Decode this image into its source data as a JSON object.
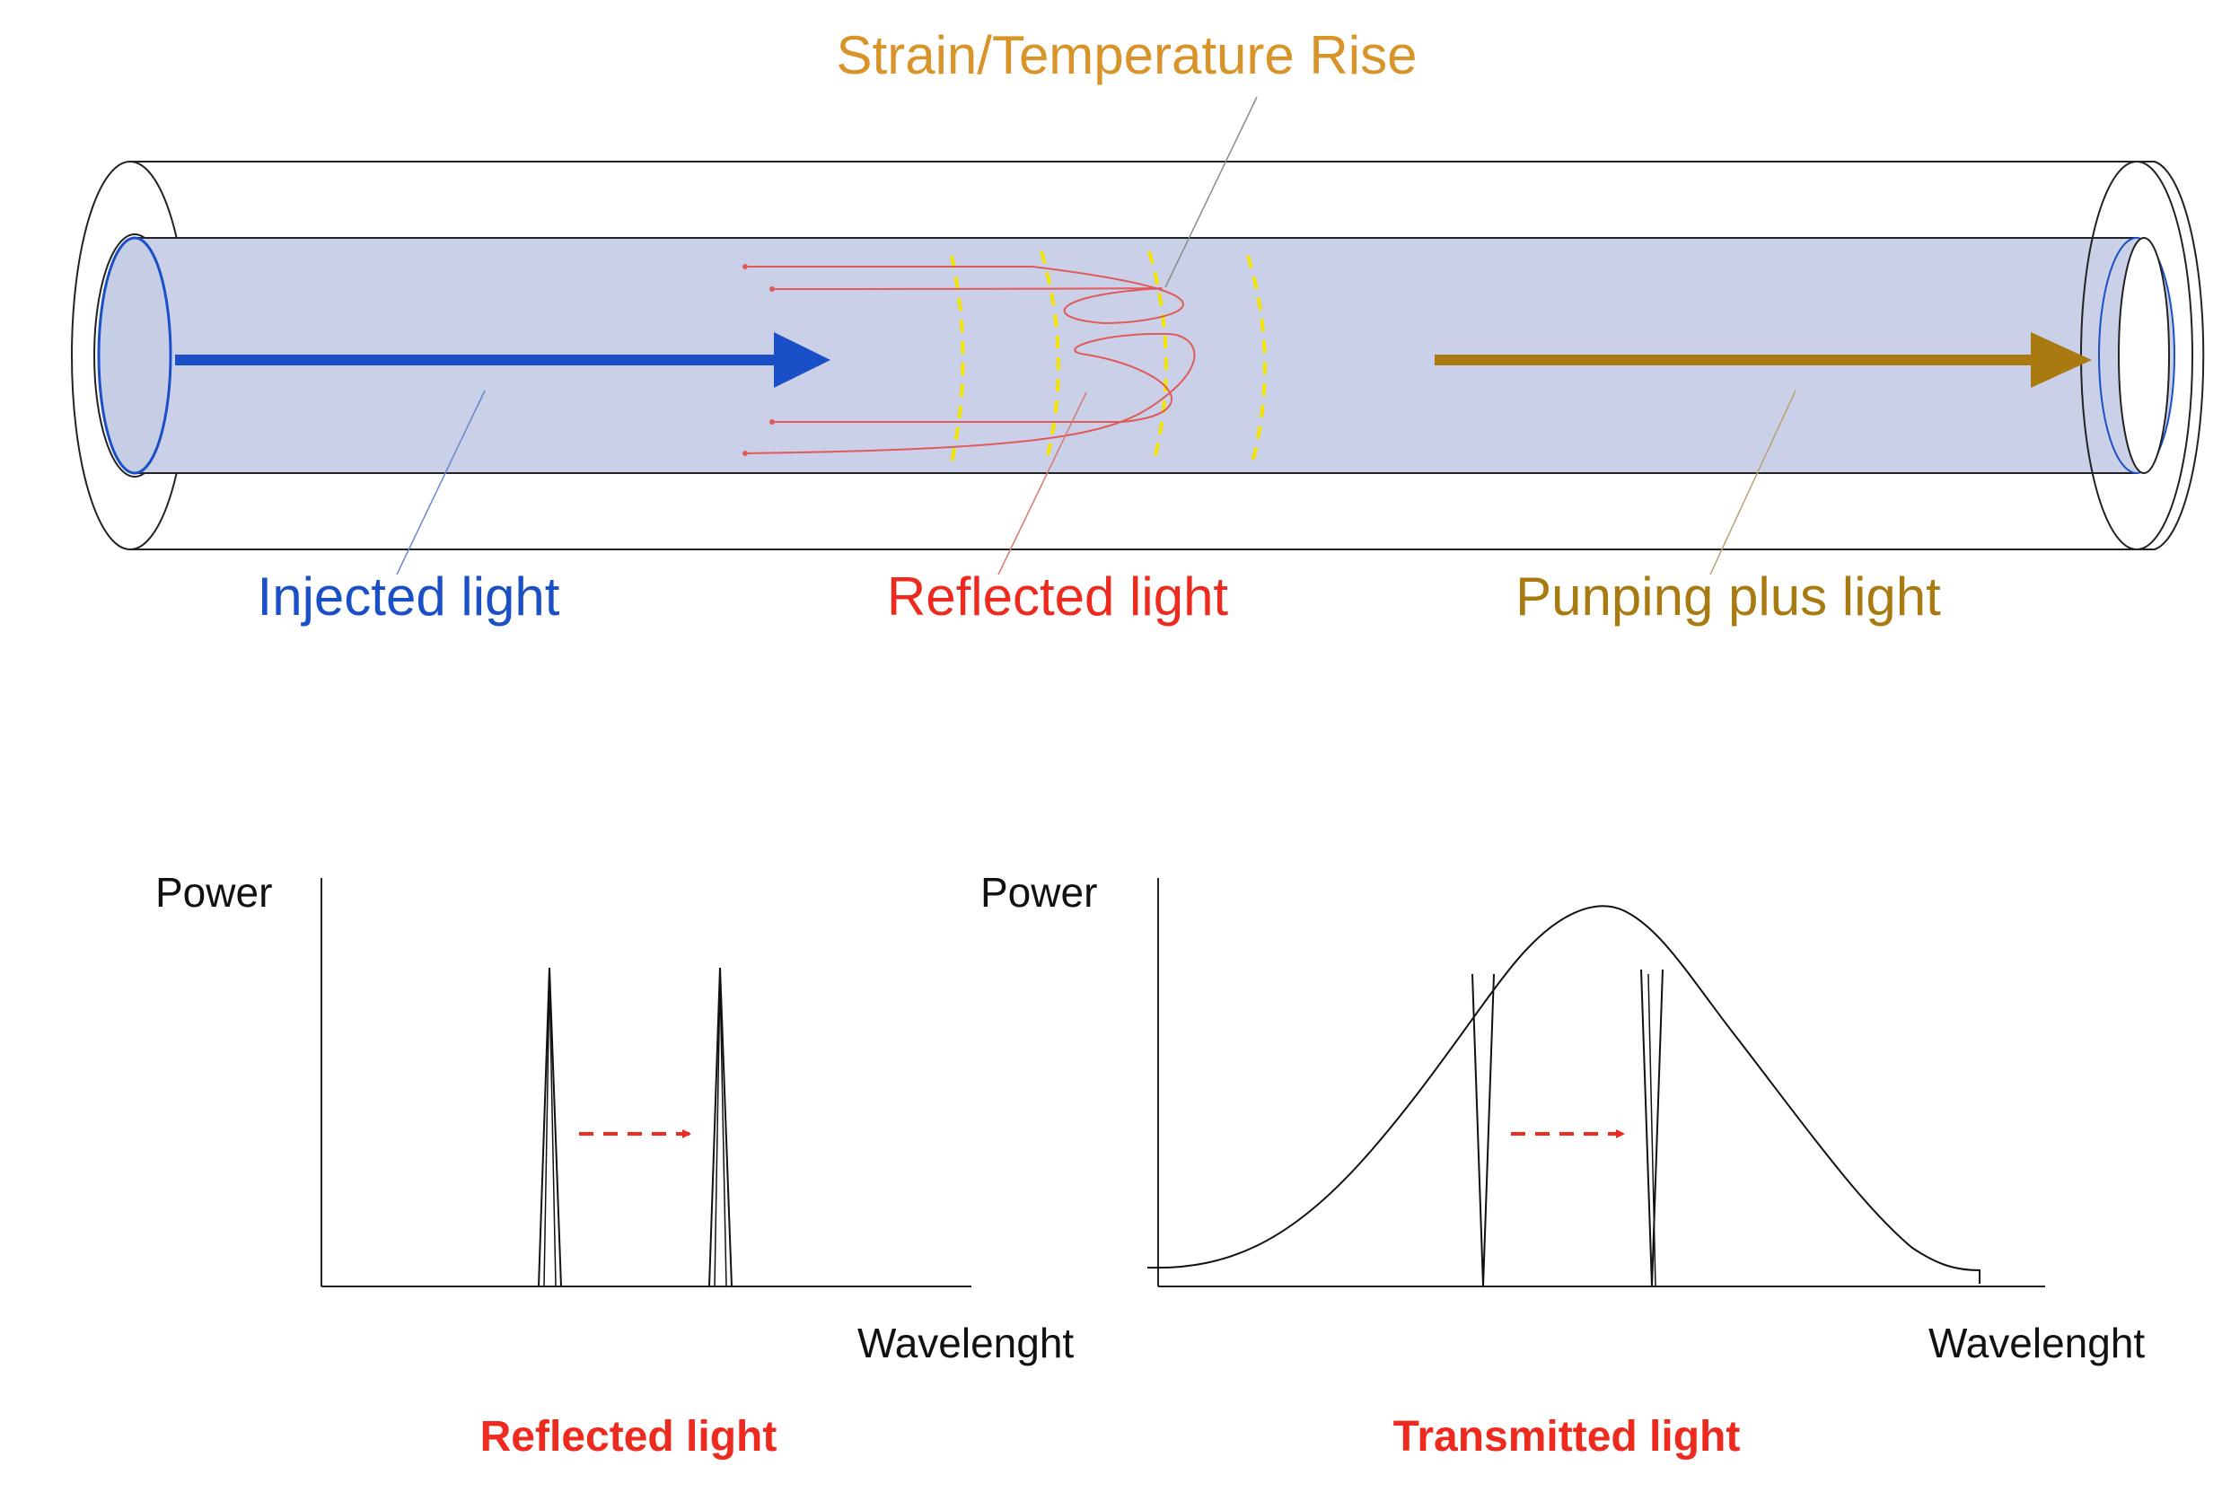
{
  "fiber": {
    "top_label": "Strain/Temperature Rise",
    "injected_label": "Injected light",
    "reflected_label": "Reflected light",
    "pumping_label": "Punping plus light"
  },
  "plots": {
    "reflected": {
      "ylabel": "Power",
      "xlabel": "Wavelenght",
      "caption": "Reflected light"
    },
    "transmitted": {
      "ylabel": "Power",
      "xlabel": "Wavelenght",
      "caption": "Transmitted light"
    }
  },
  "colors": {
    "injected": "#1a4fc8",
    "reflected": "#ee2a1e",
    "pumping": "#a87a10",
    "top_label": "#d89428",
    "grating": "#f2e400",
    "core": "#c9d0e8"
  }
}
